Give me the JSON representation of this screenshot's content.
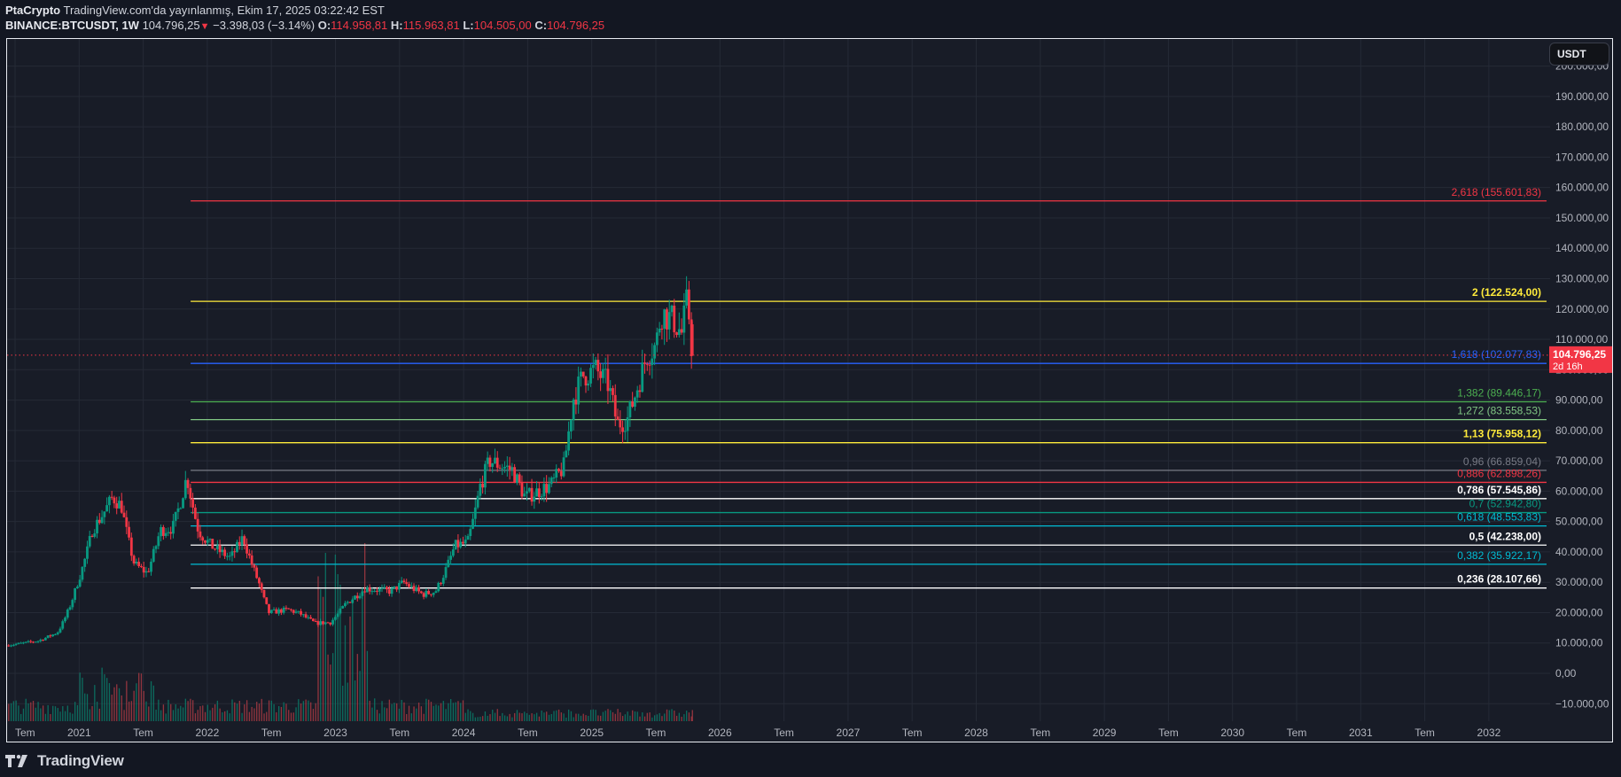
{
  "header": {
    "author": "PtaCrypto",
    "published": "TradingView.com'da yayınlanmış, Ekim 17, 2025 03:22:42 EST",
    "symbol": "BINANCE:BTCUSDT, 1W",
    "last": "104.796,25",
    "change_icon": "triangle-down-icon",
    "change": "−3.398,03 (−3.14%)",
    "open_label": "O:",
    "open": "114.958,81",
    "high_label": "H:",
    "high": "115.963,81",
    "low_label": "L:",
    "low": "104.505,00",
    "close_label": "C:",
    "close": "104.796,25"
  },
  "currency_button": "USDT",
  "footer": {
    "brand": "TradingView"
  },
  "colors": {
    "background": "#131722",
    "pane": "#181c27",
    "grid": "#252a36",
    "up": "#089981",
    "down": "#f23645",
    "axis_text": "#b2b5be",
    "price_tag_bg": "#f23645"
  },
  "price_tag": {
    "value": "104.796,25",
    "countdown": "2d 16h"
  },
  "chart_data": {
    "type": "candlestick",
    "title": "BINANCE:BTCUSDT, 1W",
    "xlabel": "",
    "ylabel": "USDT",
    "ylim": [
      -14000,
      208000
    ],
    "grid": true,
    "price_axis_ticks": [
      "200.000,00",
      "190.000,00",
      "180.000,00",
      "170.000,00",
      "160.000,00",
      "150.000,00",
      "140.000,00",
      "130.000,00",
      "120.000,00",
      "110.000,00",
      "100.000,00",
      "90.000,00",
      "80.000,00",
      "70.000,00",
      "60.000,00",
      "50.000,00",
      "40.000,00",
      "30.000,00",
      "20.000,00",
      "10.000,00",
      "0,00",
      "−10.000,00"
    ],
    "price_axis_values": [
      200000,
      190000,
      180000,
      170000,
      160000,
      150000,
      140000,
      130000,
      120000,
      110000,
      100000,
      90000,
      80000,
      70000,
      60000,
      50000,
      40000,
      30000,
      20000,
      10000,
      0,
      -10000
    ],
    "time_axis_ticks": [
      "Tem",
      "2021",
      "Tem",
      "2022",
      "Tem",
      "2023",
      "Tem",
      "2024",
      "Tem",
      "2025",
      "Tem",
      "2026",
      "Tem",
      "2027",
      "Tem",
      "2028",
      "Tem",
      "2029",
      "Tem",
      "2030",
      "Tem",
      "2031",
      "Tem",
      "2032"
    ],
    "time_axis_years": [
      2020.5,
      2021,
      2021.5,
      2022,
      2022.5,
      2023,
      2023.5,
      2024,
      2024.5,
      2025,
      2025.5,
      2026,
      2026.5,
      2027,
      2027.5,
      2028,
      2028.5,
      2029,
      2029.5,
      2030,
      2030.5,
      2031,
      2031.5,
      2032
    ],
    "price_path_anchors": [
      [
        2020.45,
        9200
      ],
      [
        2020.7,
        10700
      ],
      [
        2020.85,
        13500
      ],
      [
        2021.0,
        29000
      ],
      [
        2021.12,
        47000
      ],
      [
        2021.28,
        58000
      ],
      [
        2021.35,
        55000
      ],
      [
        2021.45,
        36000
      ],
      [
        2021.55,
        33000
      ],
      [
        2021.65,
        47000
      ],
      [
        2021.75,
        48000
      ],
      [
        2021.86,
        65000
      ],
      [
        2021.95,
        47000
      ],
      [
        2022.05,
        42000
      ],
      [
        2022.2,
        38000
      ],
      [
        2022.3,
        45000
      ],
      [
        2022.42,
        30000
      ],
      [
        2022.5,
        20000
      ],
      [
        2022.65,
        21000
      ],
      [
        2022.75,
        19500
      ],
      [
        2022.86,
        16500
      ],
      [
        2022.98,
        16800
      ],
      [
        2023.1,
        23000
      ],
      [
        2023.25,
        28000
      ],
      [
        2023.45,
        27000
      ],
      [
        2023.55,
        30000
      ],
      [
        2023.7,
        26000
      ],
      [
        2023.8,
        27000
      ],
      [
        2023.95,
        42000
      ],
      [
        2024.05,
        43000
      ],
      [
        2024.15,
        62000
      ],
      [
        2024.22,
        70000
      ],
      [
        2024.4,
        67000
      ],
      [
        2024.5,
        58000
      ],
      [
        2024.6,
        60000
      ],
      [
        2024.7,
        62000
      ],
      [
        2024.8,
        68000
      ],
      [
        2024.87,
        90000
      ],
      [
        2024.95,
        98000
      ],
      [
        2025.05,
        100000
      ],
      [
        2025.15,
        95000
      ],
      [
        2025.22,
        82000
      ],
      [
        2025.3,
        84000
      ],
      [
        2025.38,
        95000
      ],
      [
        2025.45,
        105000
      ],
      [
        2025.52,
        108000
      ],
      [
        2025.56,
        119000
      ],
      [
        2025.66,
        116000
      ],
      [
        2025.72,
        112000
      ],
      [
        2025.76,
        122000
      ],
      [
        2025.79,
        114958
      ],
      [
        2025.8,
        104796
      ]
    ],
    "last_bar": {
      "open": 114958.81,
      "high": 115963.81,
      "low": 104505.0,
      "close": 104796.25
    },
    "fib_levels": [
      {
        "ratio": "2,618",
        "price": 155601.83,
        "label": "2,618 (155.601,83)",
        "color": "#f23645",
        "bold": false
      },
      {
        "ratio": "2",
        "price": 122524.0,
        "label": "2 (122.524,00)",
        "color": "#ffeb3b",
        "bold": true
      },
      {
        "ratio": "1,618",
        "price": 102077.83,
        "label": "1,618 (102.077,83)",
        "color": "#2962ff",
        "bold": false
      },
      {
        "ratio": "1,382",
        "price": 89446.17,
        "label": "1,382 (89.446,17)",
        "color": "#4caf50",
        "bold": false
      },
      {
        "ratio": "1,272",
        "price": 83558.53,
        "label": "1,272 (83.558,53)",
        "color": "#81c784",
        "bold": false
      },
      {
        "ratio": "1,13",
        "price": 75958.12,
        "label": "1,13 (75.958,12)",
        "color": "#ffeb3b",
        "bold": true
      },
      {
        "ratio": "0,96",
        "price": 66859.04,
        "label": "0,96 (66.859,04)",
        "color": "#787b86",
        "bold": false
      },
      {
        "ratio": "0,886",
        "price": 62898.26,
        "label": "0,886 (62.898,26)",
        "color": "#f23645",
        "bold": false
      },
      {
        "ratio": "0,786",
        "price": 57545.86,
        "label": "0,786 (57.545,86)",
        "color": "#ffffff",
        "bold": true
      },
      {
        "ratio": "0,7",
        "price": 52942.8,
        "label": "0,7 (52.942,80)",
        "color": "#089981",
        "bold": false
      },
      {
        "ratio": "0,618",
        "price": 48553.83,
        "label": "0,618 (48.553,83)",
        "color": "#00bcd4",
        "bold": false
      },
      {
        "ratio": "0,5",
        "price": 42238.0,
        "label": "0,5 (42.238,00)",
        "color": "#ffffff",
        "bold": true
      },
      {
        "ratio": "0,382",
        "price": 35922.17,
        "label": "0,382 (35.922,17)",
        "color": "#00bcd4",
        "bold": false
      },
      {
        "ratio": "0,236",
        "price": 28107.66,
        "label": "0,236 (28.107,66)",
        "color": "#ffffff",
        "bold": true
      }
    ],
    "fib_start_year": 2021.87,
    "current_price": 104796.25,
    "volume": {
      "shown": true,
      "peak_period": [
        2022.85,
        2023.25
      ]
    }
  }
}
